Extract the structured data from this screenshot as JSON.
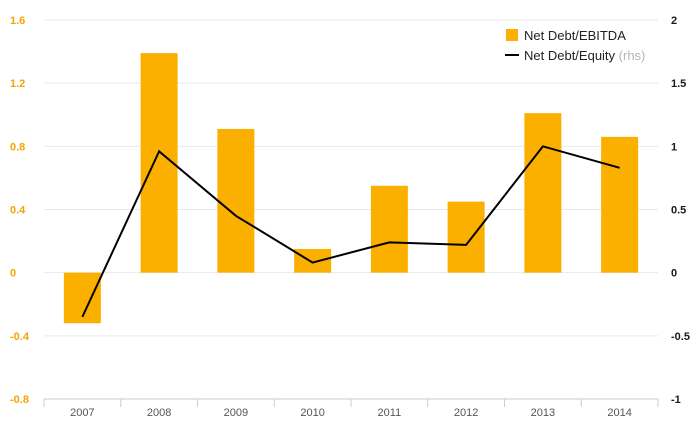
{
  "chart_data": {
    "type": "bar",
    "categories": [
      "2007",
      "2008",
      "2009",
      "2010",
      "2011",
      "2012",
      "2013",
      "2014"
    ],
    "series": [
      {
        "name": "Net Debt/EBITDA",
        "type": "bar",
        "axis": "left",
        "color": "#fbb000",
        "values": [
          -0.32,
          1.39,
          0.91,
          0.15,
          0.55,
          0.45,
          1.01,
          0.86
        ]
      },
      {
        "name": "Net Debt/Equity",
        "name_suffix": "(rhs)",
        "type": "line",
        "axis": "right",
        "color": "#000000",
        "values": [
          -0.35,
          0.96,
          0.45,
          0.08,
          0.24,
          0.22,
          1.0,
          0.83
        ]
      }
    ],
    "y_left": {
      "ylim": [
        -0.8,
        1.6
      ],
      "ticks": [
        -0.8,
        -0.4,
        0,
        0.4,
        0.8,
        1.2,
        1.6
      ],
      "tick_labels": [
        "-0.8",
        "-0.4",
        "0",
        "0.4",
        "0.8",
        "1.2",
        "1.6"
      ],
      "color": "#f5a500"
    },
    "y_right": {
      "ylim": [
        -1,
        2
      ],
      "ticks": [
        -1,
        -0.5,
        0,
        0.5,
        1,
        1.5,
        2
      ],
      "tick_labels": [
        "-1",
        "-0.5",
        "0",
        "0.5",
        "1",
        "1.5",
        "2"
      ],
      "color": "#1a1a1a"
    },
    "grid": true,
    "legend_position": "top-right",
    "title": "",
    "xlabel": "",
    "ylabel": ""
  }
}
